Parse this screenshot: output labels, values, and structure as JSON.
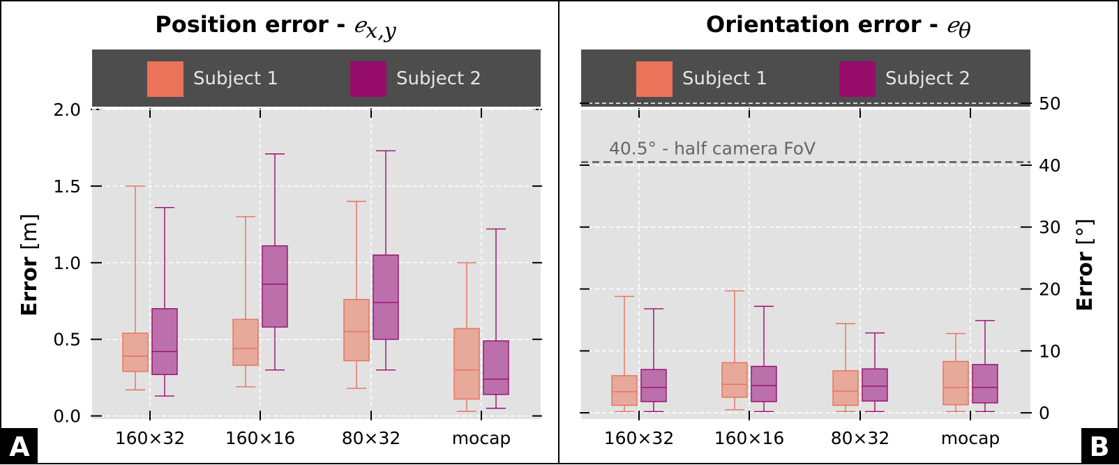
{
  "colors": {
    "subject1_fill": "#e7a99a",
    "subject1_edge": "#e8705a",
    "subject2_fill": "#bb70ab",
    "subject2_edge": "#970d6c",
    "plot_bg": "#e2e2e2",
    "legend_bg": "#4d4d4d",
    "fov_line": "#555555"
  },
  "panel_labels": [
    "A",
    "B"
  ],
  "chart_data": [
    {
      "type": "box",
      "title_text": "Position error - ",
      "title_symbol": "ℯx,y",
      "title_symbol_base": "ℯ",
      "title_symbol_sub": "x,y",
      "ylabel_bold": "Error",
      "ylabel_rest": " [m]",
      "yaxis_side": "left",
      "ylim": [
        -0.02,
        2.0
      ],
      "yticks": [
        0.0,
        0.5,
        1.0,
        1.5,
        2.0
      ],
      "ytick_labels": [
        "0.0",
        "0.5",
        "1.0",
        "1.5",
        "2.0"
      ],
      "categories": [
        "160×32",
        "160×16",
        "80×32",
        "mocap"
      ],
      "legend": [
        "Subject 1",
        "Subject 2"
      ],
      "legend_position": "top",
      "grid": true,
      "series": [
        {
          "name": "Subject 1",
          "boxes": [
            {
              "whisker_low": 0.17,
              "q1": 0.29,
              "median": 0.39,
              "q3": 0.54,
              "whisker_high": 1.5
            },
            {
              "whisker_low": 0.19,
              "q1": 0.33,
              "median": 0.44,
              "q3": 0.63,
              "whisker_high": 1.3
            },
            {
              "whisker_low": 0.18,
              "q1": 0.36,
              "median": 0.55,
              "q3": 0.76,
              "whisker_high": 1.4
            },
            {
              "whisker_low": 0.03,
              "q1": 0.11,
              "median": 0.3,
              "q3": 0.57,
              "whisker_high": 1.0
            }
          ]
        },
        {
          "name": "Subject 2",
          "boxes": [
            {
              "whisker_low": 0.13,
              "q1": 0.27,
              "median": 0.42,
              "q3": 0.7,
              "whisker_high": 1.36
            },
            {
              "whisker_low": 0.3,
              "q1": 0.58,
              "median": 0.86,
              "q3": 1.11,
              "whisker_high": 1.71
            },
            {
              "whisker_low": 0.3,
              "q1": 0.5,
              "median": 0.74,
              "q3": 1.05,
              "whisker_high": 1.73
            },
            {
              "whisker_low": 0.05,
              "q1": 0.14,
              "median": 0.24,
              "q3": 0.49,
              "whisker_high": 1.22
            }
          ]
        }
      ]
    },
    {
      "type": "box",
      "title_text": "Orientation error - ",
      "title_symbol": "ℯθ",
      "title_symbol_base": "ℯ",
      "title_symbol_sub": "θ",
      "ylabel_bold": "Error",
      "ylabel_rest": " [°]",
      "yaxis_side": "right",
      "ylim": [
        -1,
        49
      ],
      "yticks": [
        0,
        10,
        20,
        30,
        40,
        50
      ],
      "ytick_labels": [
        "0",
        "10",
        "20",
        "30",
        "40",
        "50"
      ],
      "categories": [
        "160×32",
        "160×16",
        "80×32",
        "mocap"
      ],
      "legend": [
        "Subject 1",
        "Subject 2"
      ],
      "legend_position": "top",
      "grid": true,
      "reference_line": {
        "value": 40.5,
        "label": "40.5° - half camera FoV"
      },
      "series": [
        {
          "name": "Subject 1",
          "boxes": [
            {
              "whisker_low": 0.2,
              "q1": 1.2,
              "median": 3.4,
              "q3": 6.0,
              "whisker_high": 18.8
            },
            {
              "whisker_low": 0.5,
              "q1": 2.5,
              "median": 4.6,
              "q3": 8.1,
              "whisker_high": 19.7
            },
            {
              "whisker_low": 0.2,
              "q1": 1.2,
              "median": 3.5,
              "q3": 6.8,
              "whisker_high": 14.4
            },
            {
              "whisker_low": 0.2,
              "q1": 1.3,
              "median": 4.1,
              "q3": 8.3,
              "whisker_high": 12.8
            }
          ]
        },
        {
          "name": "Subject 2",
          "boxes": [
            {
              "whisker_low": 0.2,
              "q1": 1.8,
              "median": 4.1,
              "q3": 7.0,
              "whisker_high": 16.8
            },
            {
              "whisker_low": 0.2,
              "q1": 1.8,
              "median": 4.4,
              "q3": 7.5,
              "whisker_high": 17.2
            },
            {
              "whisker_low": 0.2,
              "q1": 1.9,
              "median": 4.3,
              "q3": 7.1,
              "whisker_high": 12.9
            },
            {
              "whisker_low": 0.2,
              "q1": 1.6,
              "median": 4.1,
              "q3": 7.8,
              "whisker_high": 14.9
            }
          ]
        }
      ]
    }
  ]
}
